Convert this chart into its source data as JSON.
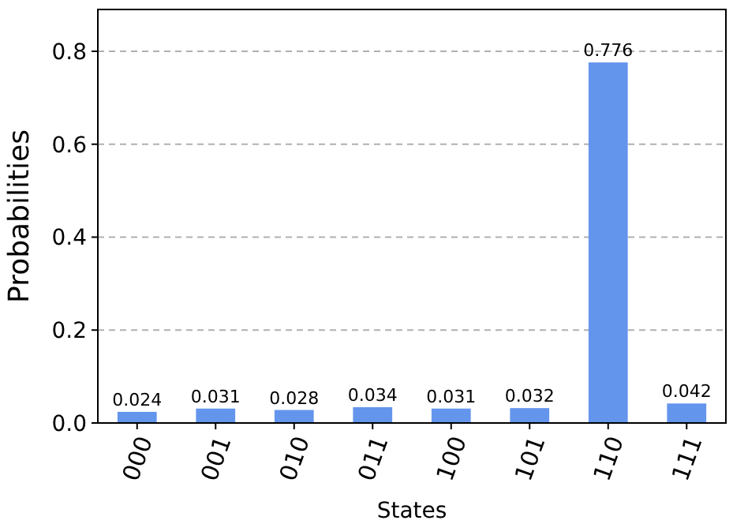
{
  "chart_data": {
    "type": "bar",
    "xlabel": "States",
    "ylabel": "Probabilities",
    "categories": [
      "000",
      "001",
      "010",
      "011",
      "100",
      "101",
      "110",
      "111"
    ],
    "values": [
      0.024,
      0.031,
      0.028,
      0.034,
      0.031,
      0.032,
      0.776,
      0.042
    ],
    "color": "#6495ed",
    "ylim": [
      0,
      0.89
    ],
    "yticks": [
      {
        "value": 0,
        "label": "0.0"
      },
      0.2,
      0.4,
      0.6,
      0.8
    ],
    "grid": "y",
    "data_labels": true
  }
}
